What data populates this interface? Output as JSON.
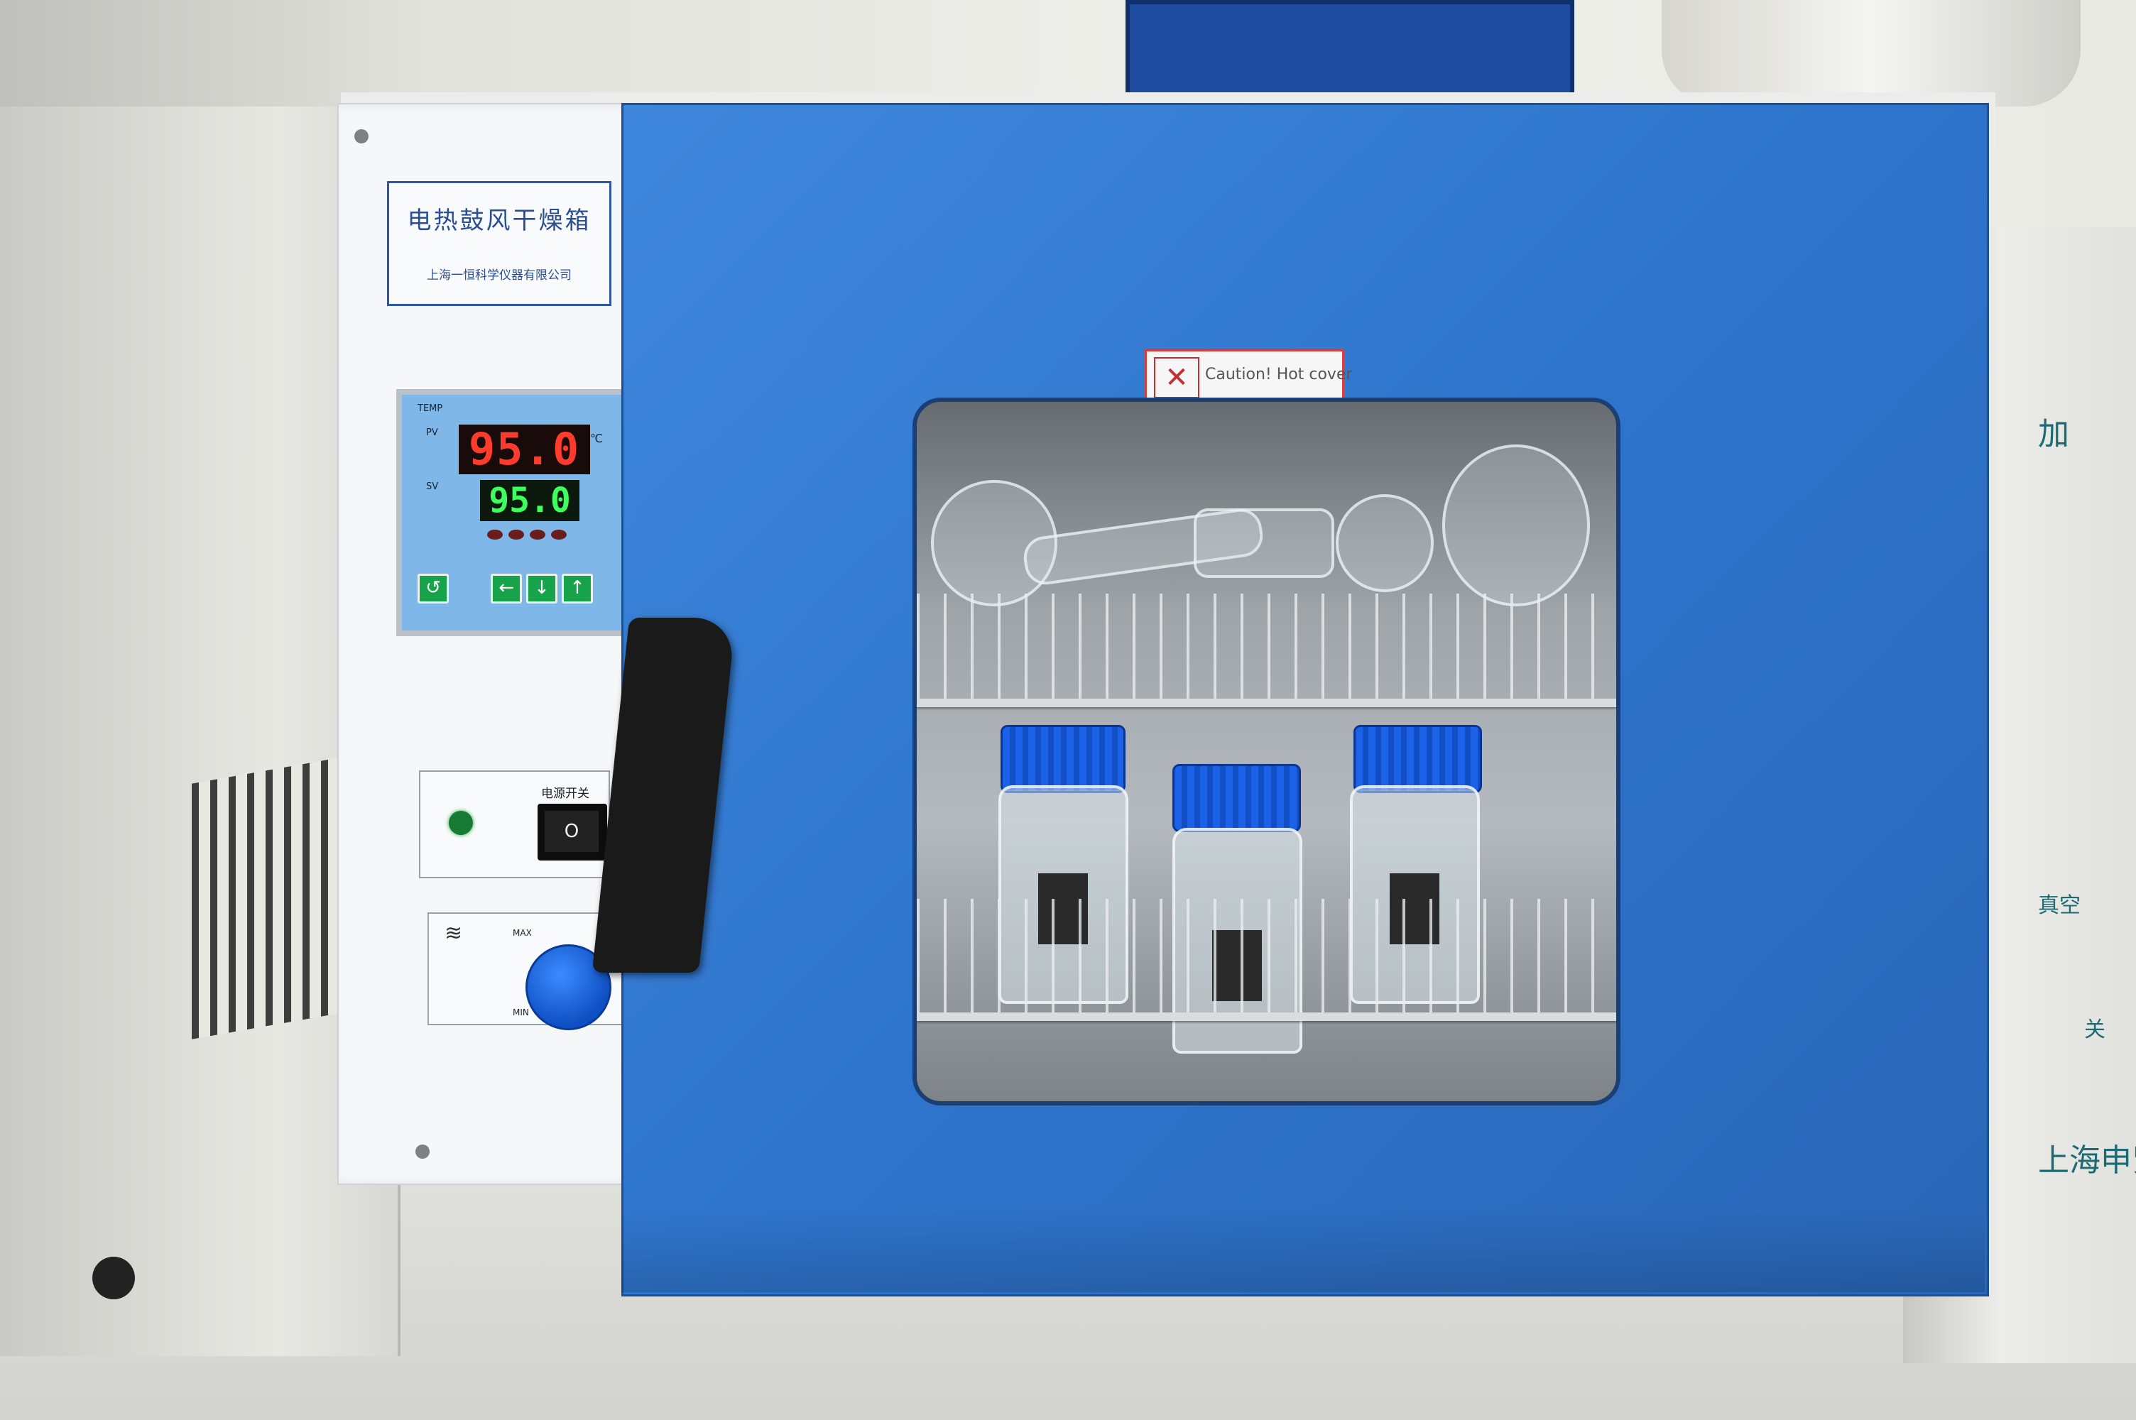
{
  "oven": {
    "label_title": "电热鼓风干燥箱",
    "manufacturer": "上海一恒科学仪器有限公司",
    "controller": {
      "temp_label": "TEMP",
      "pv_label": "PV",
      "sv_label": "SV",
      "unit": "℃",
      "pv_value": "95.0",
      "sv_value": "95.0",
      "buttons": [
        "set-icon",
        "left-arrow-icon",
        "down-arrow-icon",
        "up-arrow-icon"
      ]
    },
    "power": {
      "label": "电源开关",
      "switch_symbol": "O"
    },
    "fan": {
      "max_label": "MAX",
      "min_label": "MIN"
    },
    "caution_label": "Caution! Hot cover",
    "colors": {
      "door": "#2e74cc",
      "caps": "#1d5fe0",
      "pv_digits": "#ff3b2e",
      "sv_digits": "#3dff5e"
    }
  },
  "right_instrument": {
    "char_top": "加",
    "line2": "真空",
    "line3": "关",
    "maker": "上海申贤"
  }
}
